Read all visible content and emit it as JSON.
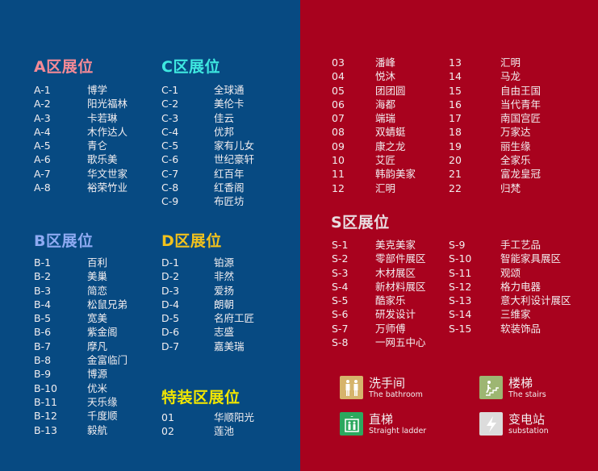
{
  "colors": {
    "left_bg": "#074a82",
    "right_bg": "#a8021e",
    "a": "#f58a96",
    "b": "#8eaaf2",
    "c": "#3ee8e0",
    "d": "#f2c21c",
    "special": "#f2e600",
    "s": "#e8dce0"
  },
  "zones": {
    "a": {
      "title": "A区展位",
      "rows": [
        [
          "A-1",
          "博学"
        ],
        [
          "A-2",
          "阳光福林"
        ],
        [
          "A-3",
          "卡若琳"
        ],
        [
          "A-4",
          "木作达人"
        ],
        [
          "A-5",
          "青仑"
        ],
        [
          "A-6",
          "歌乐美"
        ],
        [
          "A-7",
          "华文世家"
        ],
        [
          "A-8",
          "裕荣竹业"
        ]
      ]
    },
    "c": {
      "title": "C区展位",
      "rows": [
        [
          "C-1",
          "全球通"
        ],
        [
          "C-2",
          "美伦卡"
        ],
        [
          "C-3",
          "佳云"
        ],
        [
          "C-4",
          "优邦"
        ],
        [
          "C-5",
          "家有儿女"
        ],
        [
          "C-6",
          "世纪豪轩"
        ],
        [
          "C-7",
          "红百年"
        ],
        [
          "C-8",
          "红香阁"
        ],
        [
          "C-9",
          "布匠坊"
        ]
      ]
    },
    "b": {
      "title": "B区展位",
      "rows": [
        [
          "B-1",
          "百利"
        ],
        [
          "B-2",
          "美巢"
        ],
        [
          "B-3",
          "简恋"
        ],
        [
          "B-4",
          "松鼠兄弟"
        ],
        [
          "B-5",
          "宽美"
        ],
        [
          "B-6",
          "紫金阁"
        ],
        [
          "B-7",
          "摩凡"
        ],
        [
          "B-8",
          "金富临门"
        ],
        [
          "B-9",
          "博源"
        ],
        [
          "B-10",
          "优米"
        ],
        [
          "B-11",
          "天乐缘"
        ],
        [
          "B-12",
          "千度顺"
        ],
        [
          "B-13",
          "毅航"
        ]
      ]
    },
    "d": {
      "title": "D区展位",
      "rows": [
        [
          "D-1",
          "铂源"
        ],
        [
          "D-2",
          "非然"
        ],
        [
          "D-3",
          "爱扬"
        ],
        [
          "D-4",
          "朗朝"
        ],
        [
          "D-5",
          "名府工匠"
        ],
        [
          "D-6",
          "志盛"
        ],
        [
          "D-7",
          "嘉美瑞"
        ]
      ]
    },
    "special": {
      "title": "特装区展位",
      "rows": [
        [
          "01",
          "华顺阳光"
        ],
        [
          "02",
          "莲池"
        ]
      ]
    },
    "special_cont1": {
      "rows": [
        [
          "03",
          "潘峰"
        ],
        [
          "04",
          "悦沐"
        ],
        [
          "05",
          "团团圆"
        ],
        [
          "06",
          "海都"
        ],
        [
          "07",
          "端瑞"
        ],
        [
          "08",
          "双蜻蜓"
        ],
        [
          "09",
          "康之龙"
        ],
        [
          "10",
          "艾匠"
        ],
        [
          "11",
          "韩韵美家"
        ],
        [
          "12",
          "汇明"
        ]
      ]
    },
    "special_cont2": {
      "rows": [
        [
          "13",
          "汇明"
        ],
        [
          "14",
          "马龙"
        ],
        [
          "15",
          "自由王国"
        ],
        [
          "16",
          "当代青年"
        ],
        [
          "17",
          "南国宫匠"
        ],
        [
          "18",
          "万家达"
        ],
        [
          "19",
          "丽生缘"
        ],
        [
          "20",
          "全家乐"
        ],
        [
          "21",
          "富龙皇冠"
        ],
        [
          "22",
          "归梵"
        ]
      ]
    },
    "s": {
      "title": "S区展位",
      "rows": [
        [
          "S-1",
          "美克美家"
        ],
        [
          "S-2",
          "零部件展区"
        ],
        [
          "S-3",
          "木材展区"
        ],
        [
          "S-4",
          "新材料展区"
        ],
        [
          "S-5",
          "酷家乐"
        ],
        [
          "S-6",
          "研发设计"
        ],
        [
          "S-7",
          "万师傅"
        ],
        [
          "S-8",
          "一网五中心"
        ]
      ]
    },
    "s2": {
      "rows": [
        [
          "S-9",
          "手工艺品"
        ],
        [
          "S-10",
          "智能家具展区"
        ],
        [
          "S-11",
          "观颂"
        ],
        [
          "S-12",
          "格力电器"
        ],
        [
          "S-13",
          "意大利设计展区"
        ],
        [
          "S-14",
          "三维家"
        ],
        [
          "S-15",
          "软装饰品"
        ]
      ]
    }
  },
  "legend": [
    {
      "icon": "restroom-icon",
      "title": "洗手间",
      "subtitle": "The bathroom",
      "color": "#d6b46c"
    },
    {
      "icon": "stairs-icon",
      "title": "楼梯",
      "subtitle": "The stairs",
      "color": "#9db672"
    },
    {
      "icon": "elevator-icon",
      "title": "直梯",
      "subtitle": "Straight ladder",
      "color": "#2ba85e"
    },
    {
      "icon": "lightning-icon",
      "title": "变电站",
      "subtitle": "substation",
      "color": "#dcdcdc"
    }
  ]
}
